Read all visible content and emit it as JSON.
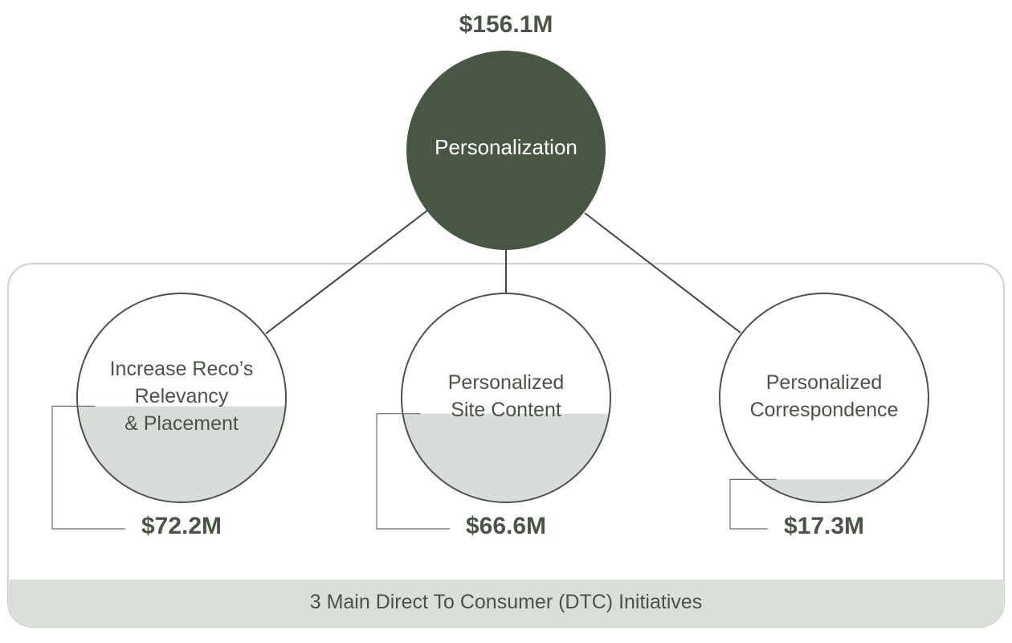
{
  "root": {
    "label": "Personalization",
    "total": "$156.1M",
    "color": "#485744"
  },
  "initiatives": [
    {
      "label_lines": [
        "Increase Reco’s",
        "Relevancy",
        "& Placement"
      ],
      "value_label": "$72.2M",
      "value": 72.2
    },
    {
      "label_lines": [
        "Personalized",
        "Site Content"
      ],
      "value_label": "$66.6M",
      "value": 66.6
    },
    {
      "label_lines": [
        "Personalized",
        "Correspondence"
      ],
      "value_label": "$17.3M",
      "value": 17.3
    }
  ],
  "footer": {
    "label": "3 Main Direct To Consumer (DTC) Initiatives"
  },
  "colors": {
    "panel_border": "#c9d6c8",
    "footer_fill": "#d9dfd9",
    "fill_level": "#d9ddd9",
    "circle_stroke": "#4a5446",
    "connector": "#3f4a3c"
  }
}
